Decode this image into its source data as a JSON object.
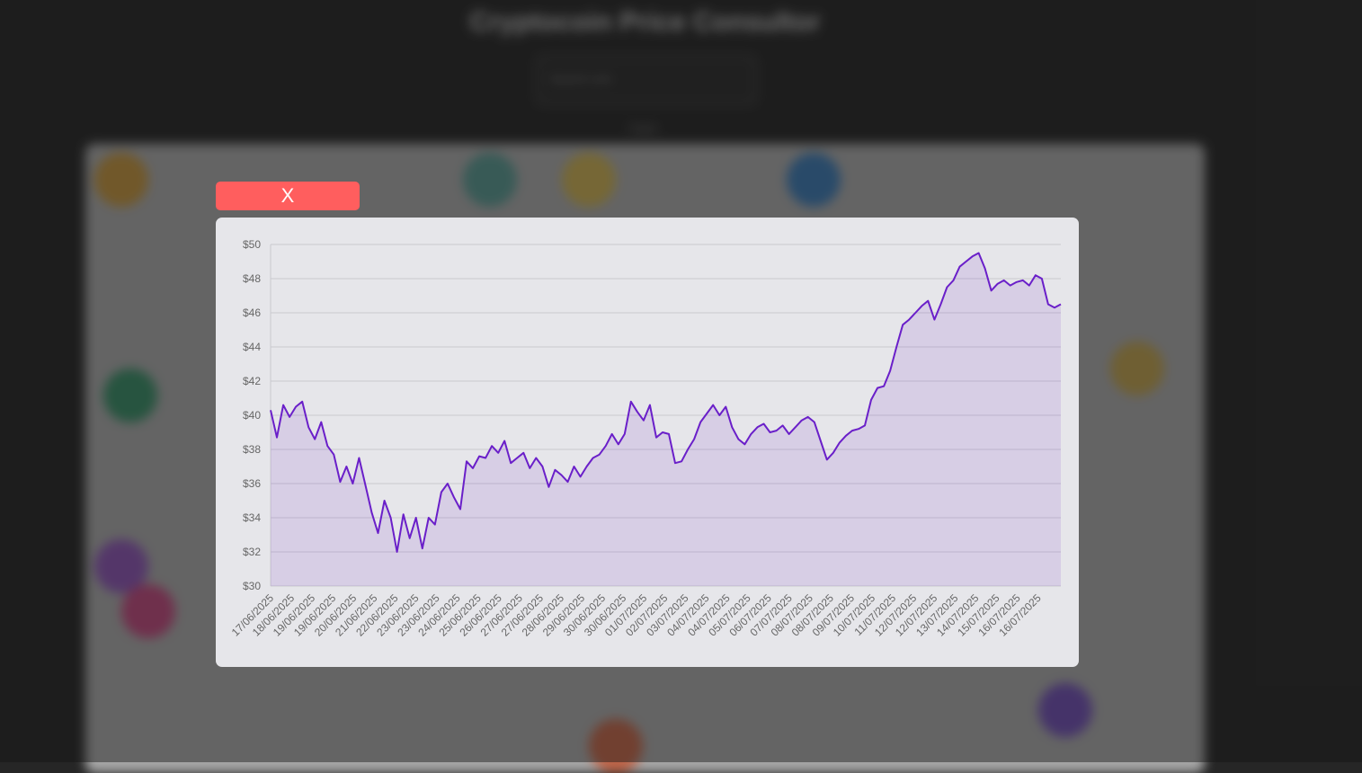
{
  "background": {
    "title": "Cryptocoin Price Consultor",
    "search_placeholder": "Search coin",
    "section_label": "Coins"
  },
  "modal": {
    "close_label": "X"
  },
  "colors": {
    "line": "#6a1fc9",
    "fill": "rgba(106,31,201,0.12)",
    "close_button": "#ff5e5e",
    "card": "#e6e6ea"
  },
  "chart_data": {
    "type": "line",
    "title": "",
    "xlabel": "",
    "ylabel": "",
    "ylim": [
      30,
      50
    ],
    "yticks": [
      30,
      32,
      34,
      36,
      38,
      40,
      42,
      44,
      46,
      48,
      50
    ],
    "ytick_labels": [
      "$30",
      "$32",
      "$34",
      "$36",
      "$38",
      "$40",
      "$42",
      "$44",
      "$46",
      "$48",
      "$50"
    ],
    "xtick_labels": [
      "17/06/2025",
      "18/06/2025",
      "19/06/2025",
      "19/06/2025",
      "20/06/2025",
      "21/06/2025",
      "22/06/2025",
      "23/06/2025",
      "23/06/2025",
      "24/06/2025",
      "25/06/2025",
      "26/06/2025",
      "27/06/2025",
      "27/06/2025",
      "28/06/2025",
      "29/06/2025",
      "30/06/2025",
      "30/06/2025",
      "01/07/2025",
      "02/07/2025",
      "03/07/2025",
      "04/07/2025",
      "04/07/2025",
      "05/07/2025",
      "06/07/2025",
      "07/07/2025",
      "08/07/2025",
      "08/07/2025",
      "09/07/2025",
      "10/07/2025",
      "11/07/2025",
      "12/07/2025",
      "12/07/2025",
      "13/07/2025",
      "14/07/2025",
      "15/07/2025",
      "16/07/2025",
      "16/07/2025"
    ],
    "grid": true,
    "legend": "none",
    "fill_area": true,
    "series": [
      {
        "values": [
          40.3,
          38.7,
          40.6,
          39.9,
          40.5,
          40.8,
          39.3,
          38.6,
          39.6,
          38.2,
          37.7,
          36.1,
          37.0,
          36.0,
          37.5,
          35.9,
          34.3,
          33.1,
          35.0,
          34.0,
          32.0,
          34.2,
          32.8,
          34.0,
          32.2,
          34.0,
          33.6,
          35.5,
          36.0,
          35.2,
          34.5,
          37.3,
          36.9,
          37.6,
          37.5,
          38.2,
          37.8,
          38.5,
          37.2,
          37.5,
          37.8,
          36.9,
          37.5,
          37.0,
          35.8,
          36.8,
          36.5,
          36.1,
          37.0,
          36.4,
          37.0,
          37.5,
          37.7,
          38.2,
          38.9,
          38.3,
          38.9,
          40.8,
          40.2,
          39.7,
          40.6,
          38.7,
          39.0,
          38.9,
          37.2,
          37.3,
          38.0,
          38.6,
          39.6,
          40.1,
          40.6,
          40.0,
          40.5,
          39.3,
          38.6,
          38.3,
          38.9,
          39.3,
          39.5,
          39.0,
          39.1,
          39.4,
          38.9,
          39.3,
          39.7,
          39.9,
          39.6,
          38.5,
          37.4,
          37.8,
          38.4,
          38.8,
          39.1,
          39.2,
          39.4,
          40.9,
          41.6,
          41.7,
          42.6,
          44.0,
          45.3,
          45.6,
          46.0,
          46.4,
          46.7,
          45.6,
          46.5,
          47.5,
          47.9,
          48.7,
          49.0,
          49.3,
          49.5,
          48.6,
          47.3,
          47.7,
          47.9,
          47.6,
          47.8,
          47.9,
          47.6,
          48.2,
          48.0,
          46.5,
          46.3,
          46.5
        ]
      }
    ]
  }
}
